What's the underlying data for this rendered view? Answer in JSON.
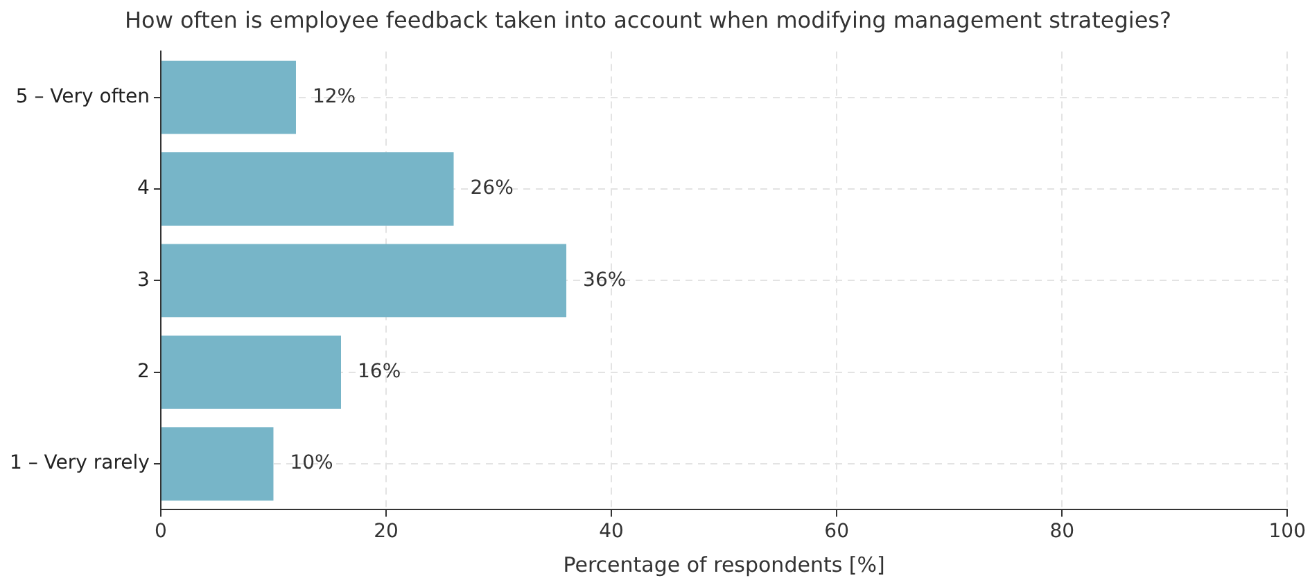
{
  "chart_data": {
    "type": "bar",
    "orientation": "horizontal",
    "title": "How often is employee feedback taken into account when modifying management strategies?",
    "xlabel": "Percentage of respondents [%]",
    "categories": [
      "5 – Very often",
      "4",
      "3",
      "2",
      "1 – Very rarely"
    ],
    "values": [
      12,
      26,
      36,
      16,
      10
    ],
    "value_labels": [
      "12%",
      "26%",
      "36%",
      "16%",
      "10%"
    ],
    "color": "#77b5c8",
    "xlim": [
      0,
      100
    ],
    "xticks": [
      0,
      20,
      40,
      60,
      80,
      100
    ],
    "grid": true
  }
}
